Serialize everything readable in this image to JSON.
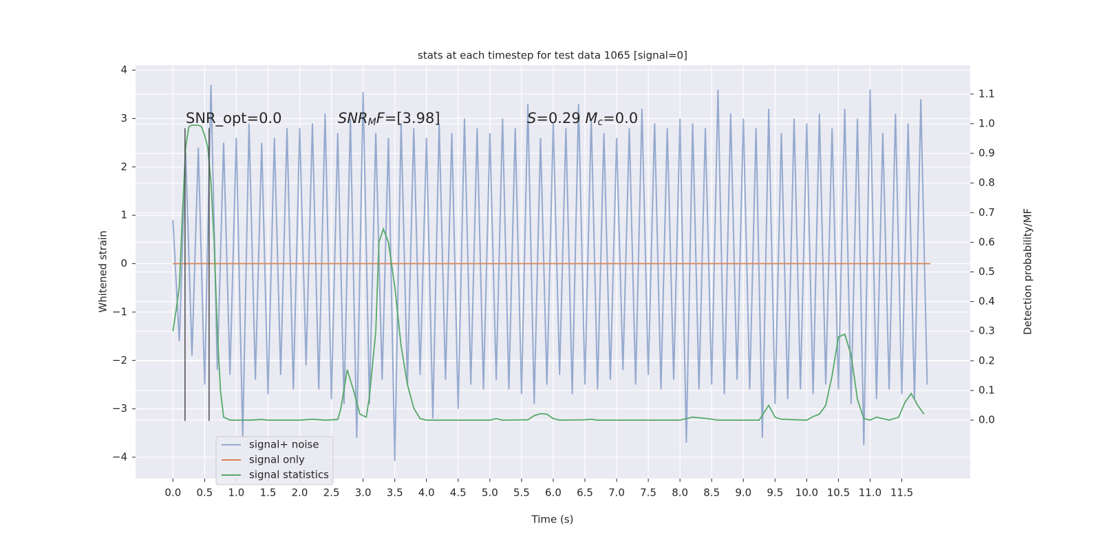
{
  "chart_data": {
    "type": "line",
    "title": "stats at each timestep for test data 1065 [signal=0]",
    "xlabel": "Time (s)",
    "ylabel": "Whitened strain",
    "y2label": "Detection probability/MF",
    "xlim": [
      -0.59,
      12.58
    ],
    "ylim": [
      -4.44,
      4.1
    ],
    "y2lim": [
      -0.197,
      1.197
    ],
    "xticks": [
      {
        "value": 0,
        "label": "0.0"
      },
      0.5,
      {
        "value": 1,
        "label": "1.0"
      },
      1.5,
      {
        "value": 2,
        "label": "2.0"
      },
      2.5,
      {
        "value": 3,
        "label": "3.0"
      },
      3.5,
      {
        "value": 4,
        "label": "4.0"
      },
      4.5,
      {
        "value": 5,
        "label": "5.0"
      },
      5.5,
      {
        "value": 6,
        "label": "6.0"
      },
      6.5,
      {
        "value": 7,
        "label": "7.0"
      },
      7.5,
      {
        "value": 8,
        "label": "8.0"
      },
      8.5,
      {
        "value": 9,
        "label": "9.0"
      },
      9.5,
      {
        "value": 10,
        "label": "10.0"
      },
      10.5,
      {
        "value": 11,
        "label": "11.0"
      },
      11.5
    ],
    "yticks": [
      {
        "value": -4,
        "label": "−4"
      },
      {
        "value": -3,
        "label": "−3"
      },
      {
        "value": -2,
        "label": "−2"
      },
      {
        "value": -1,
        "label": "−1"
      },
      0,
      1,
      2,
      3,
      4
    ],
    "y2ticks": [
      {
        "value": 0,
        "label": "0.0"
      },
      0.1,
      0.2,
      0.3,
      0.4,
      0.5,
      0.6,
      0.7,
      0.8,
      0.9,
      {
        "value": 1,
        "label": "1.0"
      },
      1.1
    ],
    "grid": true,
    "legend": "lower left",
    "series": [
      {
        "name": "signal+ noise",
        "color": "#4c72b0",
        "x": [
          0,
          0.1,
          0.2,
          0.3,
          0.4,
          0.5,
          0.6,
          0.7,
          0.8,
          0.9,
          1,
          1.1,
          1.2,
          1.3,
          1.4,
          1.5,
          1.6,
          1.7,
          1.8,
          1.9,
          2,
          2.1,
          2.2,
          2.3,
          2.4,
          2.5,
          2.6,
          2.7,
          2.8,
          2.9,
          3,
          3.1,
          3.2,
          3.3,
          3.4,
          3.5,
          3.6,
          3.7,
          3.8,
          3.9,
          4,
          4.1,
          4.2,
          4.3,
          4.4,
          4.5,
          4.6,
          4.7,
          4.8,
          4.9,
          5,
          5.1,
          5.2,
          5.3,
          5.4,
          5.5,
          5.6,
          5.7,
          5.8,
          5.9,
          6,
          6.1,
          6.2,
          6.3,
          6.4,
          6.5,
          6.6,
          6.7,
          6.8,
          6.9,
          7,
          7.1,
          7.2,
          7.3,
          7.4,
          7.5,
          7.6,
          7.7,
          7.8,
          7.9,
          8,
          8.1,
          8.2,
          8.3,
          8.4,
          8.5,
          8.6,
          8.7,
          8.8,
          8.9,
          9,
          9.1,
          9.2,
          9.3,
          9.4,
          9.5,
          9.6,
          9.7,
          9.8,
          9.9,
          10,
          10.1,
          10.2,
          10.3,
          10.4,
          10.5,
          10.6,
          10.7,
          10.8,
          10.9,
          11,
          11.1,
          11.2,
          11.3,
          11.4,
          11.5,
          11.6,
          11.7,
          11.8,
          11.9
        ],
        "values": [
          0.9,
          -1.6,
          2.3,
          -1.9,
          2.4,
          -2.5,
          3.7,
          -2.2,
          2.5,
          -2.3,
          2.6,
          -3.6,
          2.9,
          -2.4,
          2.5,
          -2.7,
          2.6,
          -2.3,
          2.8,
          -2.6,
          2.8,
          -2.1,
          2.9,
          -2.6,
          3.1,
          -2.8,
          2.7,
          -2.9,
          3.0,
          -3.6,
          3.55,
          -2.9,
          2.7,
          -2.4,
          2.6,
          -4.08,
          2.9,
          -2.5,
          2.8,
          -2.3,
          2.6,
          -3.2,
          2.9,
          -2.4,
          2.7,
          -3.0,
          3.0,
          -2.5,
          2.8,
          -2.6,
          2.7,
          -2.4,
          3.0,
          -2.6,
          2.8,
          -2.7,
          3.3,
          -2.9,
          2.6,
          -2.5,
          2.9,
          -2.3,
          2.8,
          -2.7,
          3.3,
          -2.5,
          3.0,
          -2.6,
          2.7,
          -2.4,
          2.6,
          -2.2,
          2.8,
          -2.5,
          3.2,
          -2.3,
          2.9,
          -2.6,
          2.8,
          -2.4,
          3.0,
          -3.7,
          2.9,
          -2.6,
          2.8,
          -2.5,
          3.6,
          -2.7,
          3.1,
          -2.4,
          3.0,
          -2.6,
          2.8,
          -3.6,
          3.2,
          -2.9,
          2.7,
          -2.8,
          3.0,
          -2.6,
          2.9,
          -2.7,
          3.1,
          -2.5,
          2.8,
          -2.6,
          3.2,
          -2.9,
          3.0,
          -3.75,
          3.6,
          -2.8,
          2.7,
          -2.6,
          3.1,
          -2.7,
          2.9,
          -2.8,
          3.4,
          -2.5
        ]
      },
      {
        "name": "signal only",
        "color": "#dd8452",
        "x": [
          0,
          11.95
        ],
        "values": [
          0,
          0
        ]
      },
      {
        "name": "signal statistics",
        "color": "#55a868",
        "axis": "y2",
        "x": [
          0,
          0.05,
          0.1,
          0.15,
          0.2,
          0.25,
          0.3,
          0.4,
          0.45,
          0.5,
          0.55,
          0.6,
          0.65,
          0.7,
          0.75,
          0.8,
          0.9,
          1.0,
          1.2,
          1.4,
          1.5,
          2.0,
          2.2,
          2.4,
          2.6,
          2.65,
          2.75,
          2.85,
          2.95,
          3.05,
          3.1,
          3.2,
          3.25,
          3.32,
          3.4,
          3.5,
          3.6,
          3.7,
          3.8,
          3.9,
          4.0,
          4.5,
          5.0,
          5.1,
          5.2,
          5.6,
          5.7,
          5.8,
          5.9,
          6.0,
          6.1,
          6.5,
          6.6,
          6.7,
          7.0,
          7.5,
          8.0,
          8.2,
          8.4,
          8.6,
          9.0,
          9.25,
          9.4,
          9.5,
          9.6,
          10.0,
          10.1,
          10.2,
          10.3,
          10.4,
          10.5,
          10.6,
          10.7,
          10.8,
          10.9,
          11.0,
          11.1,
          11.2,
          11.3,
          11.45,
          11.55,
          11.65,
          11.75,
          11.85
        ],
        "values": [
          0.3,
          0.37,
          0.45,
          0.7,
          0.92,
          0.99,
          0.995,
          0.995,
          0.99,
          0.96,
          0.92,
          0.8,
          0.6,
          0.3,
          0.1,
          0.01,
          0,
          0,
          0,
          0.002,
          0,
          0,
          0.003,
          0,
          0.002,
          0.04,
          0.17,
          0.1,
          0.02,
          0.01,
          0.08,
          0.3,
          0.6,
          0.645,
          0.6,
          0.45,
          0.25,
          0.12,
          0.04,
          0.005,
          0,
          0,
          0,
          0.005,
          0,
          0.001,
          0.015,
          0.022,
          0.02,
          0.005,
          0,
          0.001,
          0.003,
          0,
          0,
          0,
          0,
          0.01,
          0.006,
          0,
          0,
          0,
          0.05,
          0.01,
          0.003,
          0,
          0.012,
          0.02,
          0.05,
          0.15,
          0.28,
          0.29,
          0.22,
          0.07,
          0.005,
          0,
          0.01,
          0.005,
          0,
          0.01,
          0.06,
          0.09,
          0.05,
          0.02
        ]
      }
    ],
    "vlines": {
      "x": [
        0.19,
        0.57
      ],
      "ymin": -3.25,
      "ymax": 2.8,
      "color": "#4a4a4a"
    },
    "annotations": [
      [
        {
          "text": "SNR_opt=0.0"
        }
      ],
      [
        {
          "text": "SNR",
          "style": "italic"
        },
        {
          "text": "M",
          "style": "sub"
        },
        {
          "text": "F",
          "style": "italic"
        },
        {
          "text": "=[3.98]"
        }
      ],
      [
        {
          "text": "S",
          "style": "italic"
        },
        {
          "text": "=0.29   "
        },
        {
          "text": "M",
          "style": "italic"
        },
        {
          "text": "c",
          "style": "sub"
        },
        {
          "text": "=0.0"
        }
      ]
    ]
  }
}
